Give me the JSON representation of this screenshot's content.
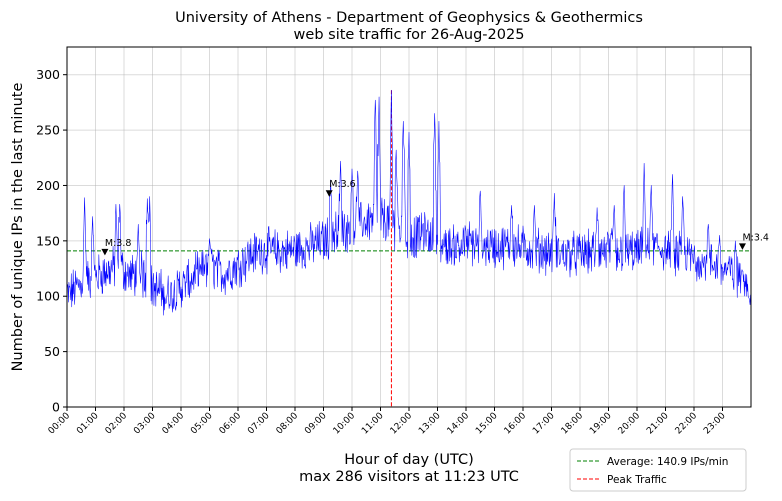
{
  "chart_data": {
    "type": "line",
    "title_line1": "University of Athens - Department of Geophysics & Geothermics",
    "title_line2": "web site traffic for 26-Aug-2025",
    "xlabel_line1": "Hour of day (UTC)",
    "xlabel_line2": "max 286 visitors at 11:23 UTC",
    "ylabel": "Number of unique IPs in the last minute",
    "xlim_hours": [
      0,
      24
    ],
    "ylim": [
      0,
      325
    ],
    "grid": true,
    "x_ticks": [
      "00:00",
      "01:00",
      "02:00",
      "03:00",
      "04:00",
      "05:00",
      "06:00",
      "07:00",
      "08:00",
      "09:00",
      "10:00",
      "11:00",
      "12:00",
      "13:00",
      "14:00",
      "15:00",
      "16:00",
      "17:00",
      "18:00",
      "19:00",
      "20:00",
      "21:00",
      "22:00",
      "23:00"
    ],
    "y_ticks": [
      0,
      50,
      100,
      150,
      200,
      250,
      300
    ],
    "average": {
      "value": 140.9,
      "label": "Average: 140.9 IPs/min"
    },
    "peak": {
      "time": "11:23",
      "hour": 11.383,
      "value": 286,
      "label": "Peak Traffic"
    },
    "markers": [
      {
        "label": "M:3.8",
        "hour": 1.33,
        "value": 140
      },
      {
        "label": "M:3.6",
        "hour": 9.2,
        "value": 193
      },
      {
        "label": "M:3.4",
        "hour": 23.7,
        "value": 145
      }
    ],
    "legend": {
      "placement": "bottom-right"
    },
    "colors": {
      "series": "#0000ff",
      "average": "#008000",
      "peak": "#ff0000",
      "marker": "#000000"
    },
    "series_profile": {
      "name": "",
      "anchors_hour_value": [
        [
          0,
          100
        ],
        [
          0.5,
          112
        ],
        [
          1.0,
          118
        ],
        [
          1.4,
          122
        ],
        [
          1.8,
          128
        ],
        [
          2.2,
          118
        ],
        [
          2.6,
          122
        ],
        [
          3.0,
          108
        ],
        [
          3.5,
          100
        ],
        [
          4.0,
          108
        ],
        [
          4.5,
          118
        ],
        [
          5.0,
          128
        ],
        [
          5.5,
          120
        ],
        [
          6.0,
          128
        ],
        [
          6.5,
          138
        ],
        [
          7.0,
          142
        ],
        [
          7.5,
          140
        ],
        [
          8.0,
          142
        ],
        [
          8.5,
          145
        ],
        [
          9.0,
          150
        ],
        [
          9.5,
          160
        ],
        [
          10.0,
          162
        ],
        [
          10.5,
          168
        ],
        [
          11.0,
          172
        ],
        [
          11.4,
          165
        ],
        [
          11.7,
          160
        ],
        [
          12.0,
          150
        ],
        [
          12.5,
          158
        ],
        [
          13.0,
          148
        ],
        [
          13.5,
          145
        ],
        [
          14.0,
          148
        ],
        [
          14.5,
          146
        ],
        [
          15.0,
          145
        ],
        [
          15.5,
          145
        ],
        [
          16.0,
          144
        ],
        [
          16.5,
          142
        ],
        [
          17.0,
          140
        ],
        [
          17.5,
          138
        ],
        [
          18.0,
          138
        ],
        [
          18.5,
          140
        ],
        [
          19.0,
          142
        ],
        [
          19.5,
          140
        ],
        [
          20.0,
          140
        ],
        [
          20.5,
          145
        ],
        [
          21.0,
          142
        ],
        [
          21.5,
          138
        ],
        [
          22.0,
          135
        ],
        [
          22.5,
          130
        ],
        [
          23.0,
          125
        ],
        [
          23.5,
          118
        ],
        [
          24.0,
          108
        ]
      ],
      "spikes_hour_value": [
        [
          0.62,
          193
        ],
        [
          0.9,
          172
        ],
        [
          1.72,
          185
        ],
        [
          1.85,
          183
        ],
        [
          2.5,
          165
        ],
        [
          2.82,
          193
        ],
        [
          2.9,
          190
        ],
        [
          5.0,
          152
        ],
        [
          9.25,
          205
        ],
        [
          9.6,
          222
        ],
        [
          10.0,
          215
        ],
        [
          10.2,
          213
        ],
        [
          10.82,
          283
        ],
        [
          10.95,
          280
        ],
        [
          11.38,
          286
        ],
        [
          11.55,
          232
        ],
        [
          11.8,
          258
        ],
        [
          12.0,
          248
        ],
        [
          12.9,
          265
        ],
        [
          13.05,
          258
        ],
        [
          14.5,
          195
        ],
        [
          15.6,
          182
        ],
        [
          16.4,
          182
        ],
        [
          17.1,
          193
        ],
        [
          18.6,
          180
        ],
        [
          19.2,
          182
        ],
        [
          19.55,
          200
        ],
        [
          20.25,
          220
        ],
        [
          20.5,
          200
        ],
        [
          21.25,
          210
        ],
        [
          21.6,
          190
        ],
        [
          22.5,
          165
        ],
        [
          22.9,
          155
        ],
        [
          23.45,
          150
        ]
      ]
    }
  }
}
